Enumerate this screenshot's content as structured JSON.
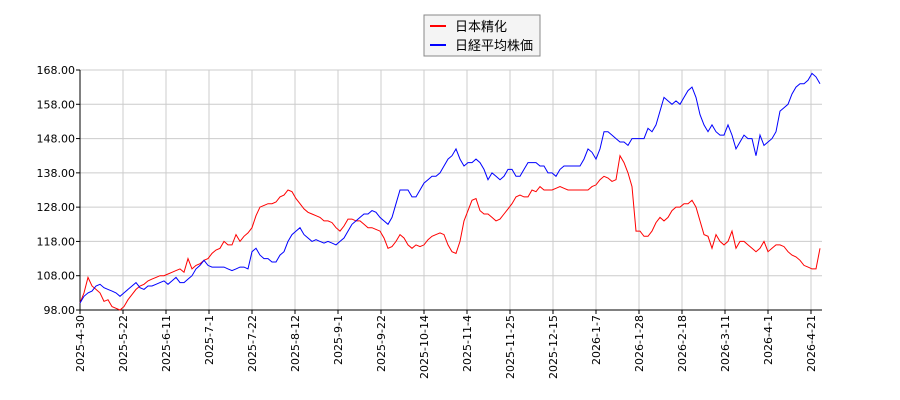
{
  "chart_data": {
    "type": "line",
    "title": "",
    "xlabel": "",
    "ylabel": "",
    "ylim": [
      98,
      168
    ],
    "yticks": [
      "98.00",
      "108.00",
      "118.00",
      "128.00",
      "138.00",
      "148.00",
      "158.00",
      "168.00"
    ],
    "xticks": [
      "2025-4-30",
      "2025-5-22",
      "2025-6-11",
      "2025-7-1",
      "2025-7-22",
      "2025-8-12",
      "2025-9-1",
      "2025-9-22",
      "2025-10-14",
      "2025-11-4",
      "2025-11-25",
      "2025-12-15",
      "2026-1-7",
      "2026-1-28",
      "2026-2-18",
      "2026-3-11",
      "2026-4-1",
      "2026-4-21"
    ],
    "grid": true,
    "legend_placement": "top-center",
    "series": [
      {
        "name": "日本精化",
        "color": "#ff0000",
        "values": [
          100,
          103,
          107.5,
          105,
          104,
          103,
          100.5,
          101,
          99,
          98.5,
          98,
          99,
          101,
          102.5,
          104,
          105,
          105.5,
          106.5,
          107,
          107.5,
          108,
          108,
          108.5,
          109,
          109.5,
          110,
          109,
          113,
          110,
          111,
          111.5,
          112.5,
          113,
          114.5,
          115.5,
          116,
          118,
          117,
          117,
          120,
          118,
          119.5,
          120.5,
          122,
          125.5,
          128,
          128.5,
          129,
          129,
          129.5,
          131,
          131.5,
          133,
          132.5,
          130.5,
          129,
          127.5,
          126.5,
          126,
          125.5,
          125,
          124,
          124,
          123.5,
          122,
          121,
          122.5,
          124.5,
          124.5,
          124,
          124,
          123,
          122,
          122,
          121.5,
          121,
          119,
          116,
          116.5,
          118,
          120,
          119,
          117,
          116,
          117,
          116.5,
          117,
          118.5,
          119.5,
          120,
          120.5,
          120,
          117,
          115,
          114.5,
          118,
          124,
          127,
          130,
          130.5,
          127,
          126,
          126,
          125,
          124,
          124.5,
          126,
          127.5,
          129,
          131,
          131.5,
          131,
          131,
          133,
          132.5,
          134,
          133,
          133,
          133,
          133.5,
          134,
          133.5,
          133,
          133,
          133,
          133,
          133,
          133,
          134,
          134.5,
          136,
          137,
          136.5,
          135.5,
          136,
          143,
          141,
          138,
          134,
          121,
          121,
          119.5,
          119.5,
          121,
          123.5,
          125,
          124,
          125,
          127,
          128,
          128,
          129,
          129,
          130,
          128,
          124,
          120,
          119.5,
          116,
          120,
          118,
          117,
          118,
          121,
          116,
          118,
          118,
          117,
          116,
          115,
          116,
          118,
          115,
          116,
          117,
          117,
          116.5,
          115,
          114,
          113.5,
          112.5,
          111,
          110.5,
          110,
          110,
          116
        ]
      },
      {
        "name": "日経平均株価",
        "color": "#0000ff",
        "values": [
          100,
          102,
          103,
          103.5,
          105,
          105.5,
          104.5,
          104,
          103.5,
          103,
          102,
          103,
          104,
          105,
          106,
          104.5,
          104,
          105,
          105,
          105.5,
          106,
          106.5,
          105.5,
          106.5,
          107.5,
          106,
          106,
          107,
          108,
          110,
          111,
          112.5,
          111,
          110.5,
          110.5,
          110.5,
          110.5,
          110,
          109.5,
          110,
          110.5,
          110.5,
          110,
          115,
          116,
          114,
          113,
          113,
          112,
          112,
          114,
          115,
          118,
          120,
          121,
          122,
          120,
          119,
          118,
          118.5,
          118,
          117.5,
          118,
          117.5,
          117,
          118,
          119,
          121,
          123,
          124,
          125,
          126,
          126,
          127,
          126.5,
          125,
          124,
          123,
          125,
          129,
          133,
          133,
          133,
          131,
          131,
          133,
          135,
          136,
          137,
          137,
          138,
          140,
          142,
          143,
          145,
          142,
          140,
          141,
          141,
          142,
          141,
          139,
          136,
          138,
          137,
          136,
          137,
          139,
          139,
          137,
          137,
          139,
          141,
          141,
          141,
          140,
          140,
          138,
          138,
          137,
          139,
          140,
          140,
          140,
          140,
          140,
          142,
          145,
          144,
          142,
          145,
          150,
          150,
          149,
          148,
          147,
          147,
          146,
          148,
          148,
          148,
          148,
          151,
          150,
          152,
          156,
          160,
          159,
          158,
          159,
          158,
          160,
          162,
          163,
          160,
          155,
          152,
          150,
          152,
          150,
          149,
          149,
          152,
          149,
          145,
          147,
          149,
          148,
          148,
          143,
          149,
          146,
          147,
          148,
          150,
          156,
          157,
          158,
          161,
          163,
          164,
          164,
          165,
          167,
          166,
          164
        ]
      }
    ]
  }
}
